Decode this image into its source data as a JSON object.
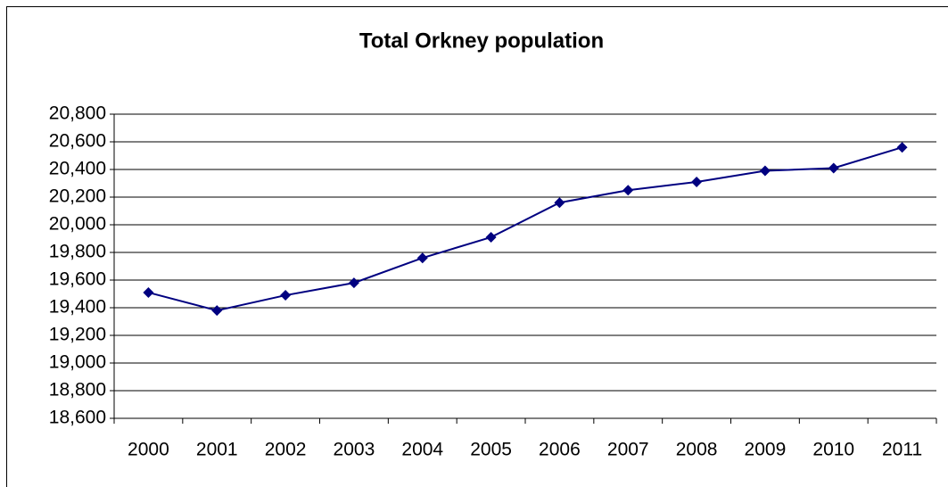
{
  "chart_data": {
    "type": "line",
    "title": "Total Orkney population",
    "categories": [
      "2000",
      "2001",
      "2002",
      "2003",
      "2004",
      "2005",
      "2006",
      "2007",
      "2008",
      "2009",
      "2010",
      "2011"
    ],
    "series": [
      {
        "name": "Total Orkney population",
        "color": "#000080",
        "values": [
          19510,
          19380,
          19490,
          19580,
          19760,
          19910,
          20160,
          20250,
          20310,
          20390,
          20410,
          20560
        ]
      }
    ],
    "ylim": [
      18600,
      20800
    ],
    "yticks": [
      {
        "value": 18600,
        "label": "18,600"
      },
      {
        "value": 18800,
        "label": "18,800"
      },
      {
        "value": 19000,
        "label": "19,000"
      },
      {
        "value": 19200,
        "label": "19,200"
      },
      {
        "value": 19400,
        "label": "19,400"
      },
      {
        "value": 19600,
        "label": "19,600"
      },
      {
        "value": 19800,
        "label": "19,800"
      },
      {
        "value": 20000,
        "label": "20,000"
      },
      {
        "value": 20200,
        "label": "20,200"
      },
      {
        "value": 20400,
        "label": "20,400"
      },
      {
        "value": 20600,
        "label": "20,600"
      },
      {
        "value": 20800,
        "label": "20,800"
      }
    ],
    "grid": true
  }
}
